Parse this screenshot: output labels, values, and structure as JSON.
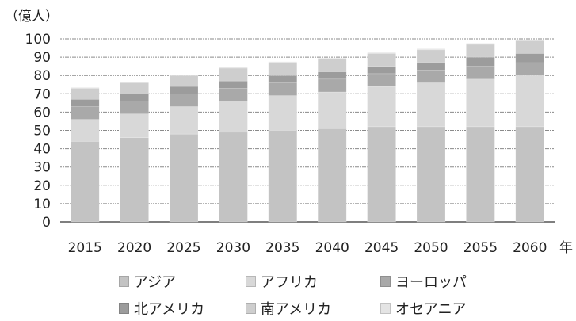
{
  "chart_data": {
    "type": "bar",
    "stacked": true,
    "title": "",
    "ylabel": "（億人）",
    "xlabel": "年",
    "ylim": [
      0,
      100
    ],
    "yticks": [
      0,
      10,
      20,
      30,
      40,
      50,
      60,
      70,
      80,
      90,
      100
    ],
    "categories": [
      "2015",
      "2020",
      "2025",
      "2030",
      "2035",
      "2040",
      "2045",
      "2050",
      "2055",
      "2060"
    ],
    "series": [
      {
        "name": "アジア",
        "color": "#c3c3c3",
        "values": [
          44,
          46,
          48,
          49,
          50,
          51,
          52,
          52,
          52,
          52
        ]
      },
      {
        "name": "アフリカ",
        "color": "#d8d8d8",
        "values": [
          12,
          13,
          15,
          17,
          19,
          20,
          22,
          24,
          26,
          28
        ]
      },
      {
        "name": "ヨーロッパ",
        "color": "#a9a9a9",
        "values": [
          7,
          7,
          7,
          7,
          7,
          7,
          7,
          7,
          7,
          7
        ]
      },
      {
        "name": "北アメリカ",
        "color": "#9c9c9c",
        "values": [
          4,
          4,
          4,
          4,
          4,
          4,
          4,
          4,
          5,
          5
        ]
      },
      {
        "name": "南アメリカ",
        "color": "#cecece",
        "values": [
          6,
          6,
          6,
          7,
          7,
          7,
          7,
          7,
          7,
          7
        ]
      },
      {
        "name": "オセアニア",
        "color": "#e4e4e4",
        "values": [
          0.4,
          0.4,
          0.4,
          0.5,
          0.5,
          0.5,
          0.5,
          0.6,
          0.6,
          0.6
        ]
      }
    ],
    "grid": true,
    "legend_position": "bottom"
  }
}
